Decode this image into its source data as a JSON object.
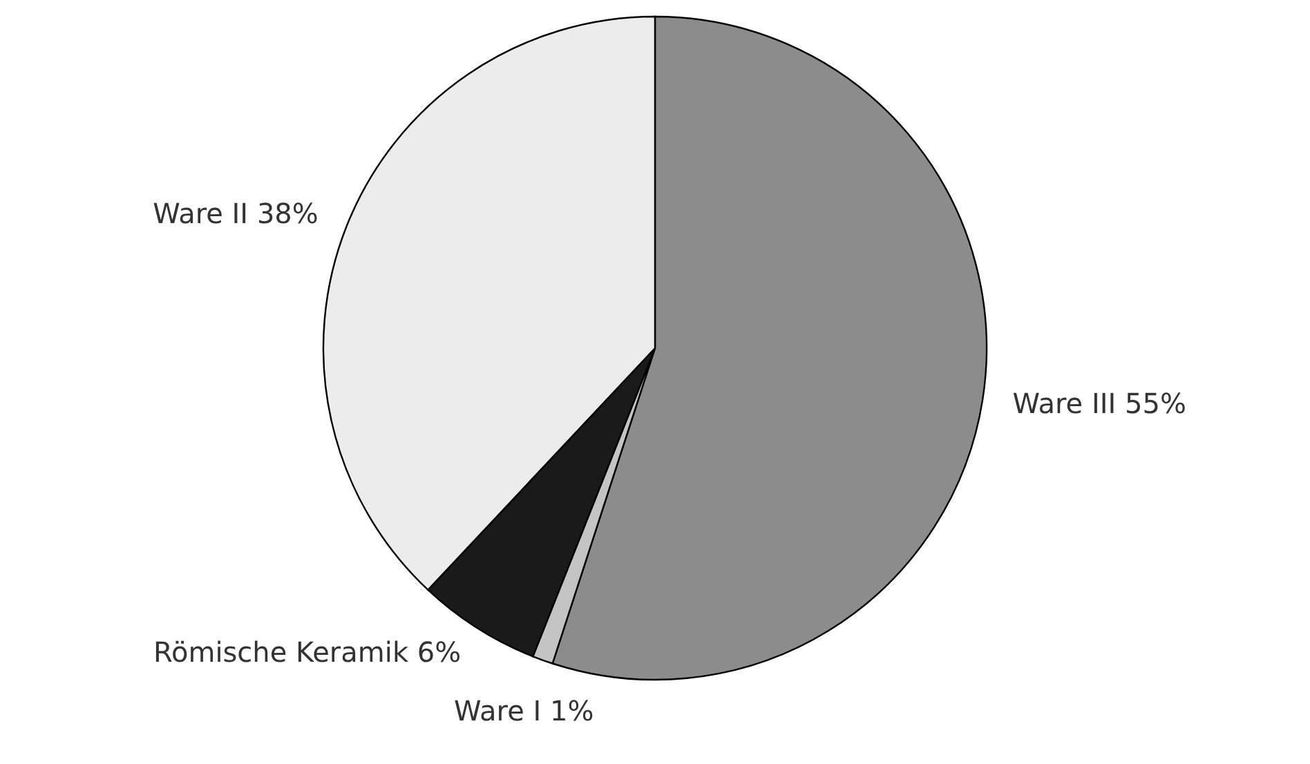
{
  "chart_data": {
    "type": "pie",
    "categories": [
      "Ware III",
      "Ware I",
      "Römische Keramik",
      "Ware II"
    ],
    "values": [
      55,
      1,
      6,
      38
    ],
    "value_labels": [
      "55%",
      "1%",
      "6%",
      "38%"
    ],
    "colors": [
      "#8c8c8c",
      "#c4c4c4",
      "#1a1a1a",
      "#ececec"
    ]
  }
}
